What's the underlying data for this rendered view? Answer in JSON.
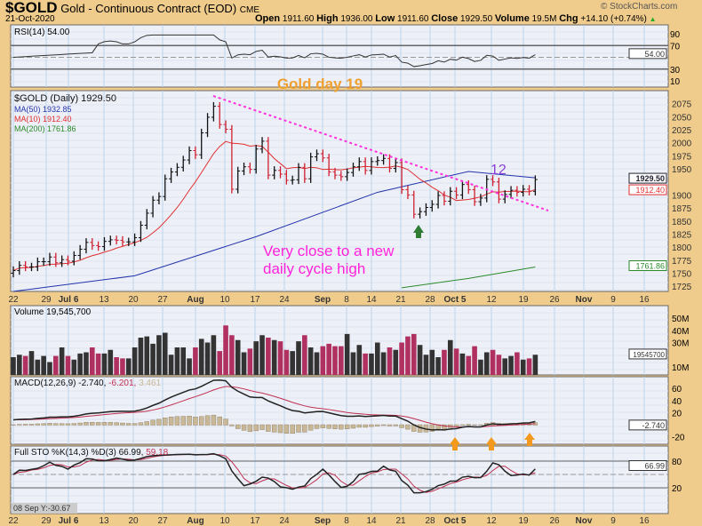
{
  "header": {
    "symbol": "$GOLD",
    "name": "Gold - Continuous Contract (EOD)",
    "exchange": "CME",
    "date": "21-Oct-2020",
    "brand": "© StockCharts.com",
    "quote": {
      "open_label": "Open",
      "open": "1911.60",
      "high_label": "High",
      "high": "1936.00",
      "low_label": "Low",
      "low": "1911.60",
      "close_label": "Close",
      "close": "1929.50",
      "volume_label": "Volume",
      "volume": "19.5M",
      "chg_label": "Chg",
      "chg": "+14.10 (+0.74%)"
    }
  },
  "annotations": {
    "title": "Gold day 19",
    "count": "12",
    "note_line1": "Very close to a new",
    "note_line2": "daily cycle high",
    "colors": {
      "title": "#f0a030",
      "count": "#8a3fd8",
      "note": "#ff22dd",
      "trend": "#ff33dd",
      "up_arrow": "#2e7d32",
      "macd_arrow": "#f39a1e"
    }
  },
  "status": "08 Sep Y:-30.67",
  "chart_data": {
    "type": "line",
    "x_ticks": [
      "22",
      "29",
      "Jul 6",
      "13",
      "20",
      "27",
      "Aug",
      "10",
      "17",
      "24",
      "Sep",
      "8",
      "14",
      "21",
      "28",
      "Oct 5",
      "12",
      "19",
      "26",
      "Nov",
      "9",
      "16"
    ],
    "price": {
      "legend": "$GOLD (Daily) 1929.50",
      "ma50_label": "MA(50) 1932.85",
      "ma10_label": "MA(10) 1912.40",
      "ma200_label": "MA(200) 1761.86",
      "last_labels": [
        "1929.50",
        "1912.40",
        "1761.86"
      ],
      "ylim": [
        1715,
        2100
      ],
      "ticks": [
        "2075",
        "2050",
        "2025",
        "2000",
        "1975",
        "1950",
        "1900",
        "1875",
        "1850",
        "1825",
        "1800",
        "1775",
        "1750",
        "1725"
      ],
      "closes": [
        1755,
        1765,
        1762,
        1762,
        1772,
        1772,
        1781,
        1770,
        1776,
        1773,
        1784,
        1796,
        1809,
        1803,
        1801,
        1811,
        1814,
        1813,
        1810,
        1810,
        1818,
        1842,
        1865,
        1890,
        1897,
        1931,
        1944,
        1953,
        1967,
        1985,
        1977,
        2019,
        2049,
        2070,
        2035,
        2026,
        1911,
        1946,
        1954,
        1949,
        1988,
        2003,
        1938,
        1947,
        1940,
        1928,
        1929,
        1953,
        1931,
        1973,
        1979,
        1971,
        1944,
        1938,
        1935,
        1943,
        1954,
        1964,
        1947,
        1964,
        1966,
        1970,
        1951,
        1962,
        1910,
        1900,
        1863,
        1868,
        1876,
        1882,
        1899,
        1888,
        1907,
        1900,
        1920,
        1910,
        1887,
        1894,
        1930,
        1925,
        1892,
        1901,
        1909,
        1905,
        1911,
        1907,
        1929.5
      ],
      "ma50": [
        [
          0,
          1715
        ],
        [
          20,
          1745
        ],
        [
          40,
          1820
        ],
        [
          60,
          1905
        ],
        [
          75,
          1945
        ],
        [
          86,
          1932.85
        ]
      ],
      "ma200": [
        [
          64,
          1722
        ],
        [
          75,
          1740
        ],
        [
          86,
          1761.86
        ]
      ]
    },
    "rsi": {
      "legend": "RSI(14) 54.00",
      "last": "54.00",
      "ticks": [
        "90",
        "70",
        "30",
        "10"
      ]
    },
    "volume": {
      "legend": "Volume 19,545,700",
      "last": "19545700",
      "ticks": [
        "50M",
        "40M",
        "30M",
        "10M"
      ],
      "values": [
        18,
        20,
        19,
        23,
        16,
        19,
        14,
        19,
        26,
        19,
        16,
        21,
        22,
        26,
        21,
        21,
        24,
        18,
        17,
        17,
        26,
        34,
        35,
        29,
        36,
        38,
        20,
        26,
        26,
        17,
        26,
        33,
        30,
        36,
        23,
        44,
        36,
        32,
        22,
        25,
        31,
        36,
        34,
        32,
        31,
        24,
        23,
        31,
        36,
        26,
        22,
        27,
        29,
        27,
        27,
        37,
        22,
        28,
        21,
        21,
        30,
        22,
        26,
        24,
        30,
        35,
        37,
        28,
        20,
        24,
        18,
        24,
        32,
        25,
        21,
        19,
        27,
        16,
        22,
        24,
        20,
        17,
        19,
        22,
        16,
        17,
        20
      ]
    },
    "macd": {
      "legend_a": "MACD(12,26,9) -2.740,",
      "legend_b": "-6.201,",
      "legend_c": "3.461",
      "last": "-2.740",
      "ticks": [
        "60",
        "40",
        "20",
        "-20"
      ]
    },
    "sto": {
      "legend_a": "Full STO %K(14,3) %D(3) 66.99,",
      "legend_b": "59.18",
      "last": "66.99",
      "ticks": [
        "80",
        "20"
      ]
    }
  }
}
